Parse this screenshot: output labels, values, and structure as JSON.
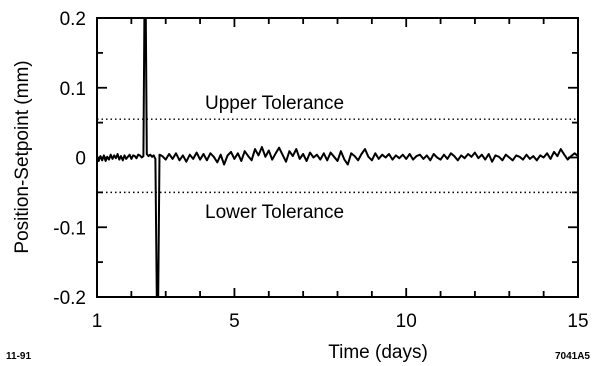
{
  "chart_data": {
    "type": "line",
    "xlabel": "Time   (days)",
    "ylabel": "Position-Setpoint   (mm)",
    "xlim": [
      1,
      15
    ],
    "ylim": [
      -0.2,
      0.2
    ],
    "x_ticks": [
      1,
      5,
      10,
      15
    ],
    "y_ticks": [
      -0.2,
      -0.1,
      0,
      0.1,
      0.2
    ],
    "y_tick_labels": [
      "-0.2",
      "-0.1",
      "0",
      "0.1",
      "0.2"
    ],
    "grid": false,
    "annotations": {
      "upper": "Upper Tolerance",
      "lower": "Lower Tolerance"
    },
    "tolerances": {
      "upper": 0.055,
      "lower": -0.05
    },
    "corner_left": "11-91",
    "corner_right": "7041A5",
    "series": [
      {
        "values": [
          [
            1.0,
            0.0
          ],
          [
            1.05,
            -0.005
          ],
          [
            1.1,
            0.002
          ],
          [
            1.15,
            -0.004
          ],
          [
            1.2,
            0.003
          ],
          [
            1.25,
            -0.005
          ],
          [
            1.3,
            0.001
          ],
          [
            1.35,
            -0.003
          ],
          [
            1.4,
            0.004
          ],
          [
            1.45,
            -0.002
          ],
          [
            1.5,
            0.003
          ],
          [
            1.55,
            -0.001
          ],
          [
            1.6,
            0.005
          ],
          [
            1.65,
            -0.003
          ],
          [
            1.7,
            0.002
          ],
          [
            1.75,
            -0.004
          ],
          [
            1.8,
            0.003
          ],
          [
            1.85,
            -0.002
          ],
          [
            1.9,
            0.001
          ],
          [
            1.95,
            0.004
          ],
          [
            2.0,
            -0.002
          ],
          [
            2.05,
            0.003
          ],
          [
            2.1,
            0.002
          ],
          [
            2.15,
            -0.001
          ],
          [
            2.2,
            0.004
          ],
          [
            2.25,
            0.003
          ],
          [
            2.3,
            0.0
          ],
          [
            2.35,
            0.002
          ],
          [
            2.38,
            0.21
          ],
          [
            2.42,
            0.21
          ],
          [
            2.45,
            0.005
          ],
          [
            2.5,
            0.002
          ],
          [
            2.55,
            0.004
          ],
          [
            2.6,
            0.001
          ],
          [
            2.65,
            0.003
          ],
          [
            2.7,
            -0.002
          ],
          [
            2.74,
            -0.21
          ],
          [
            2.78,
            -0.21
          ],
          [
            2.82,
            0.004
          ],
          [
            2.9,
            0.002
          ],
          [
            3.0,
            -0.003
          ],
          [
            3.1,
            0.005
          ],
          [
            3.2,
            -0.002
          ],
          [
            3.3,
            0.006
          ],
          [
            3.4,
            -0.004
          ],
          [
            3.5,
            0.003
          ],
          [
            3.6,
            -0.006
          ],
          [
            3.7,
            0.004
          ],
          [
            3.8,
            -0.002
          ],
          [
            3.9,
            0.007
          ],
          [
            4.0,
            -0.003
          ],
          [
            4.1,
            0.005
          ],
          [
            4.2,
            -0.004
          ],
          [
            4.3,
            0.006
          ],
          [
            4.4,
            0.001
          ],
          [
            4.5,
            -0.007
          ],
          [
            4.6,
            0.004
          ],
          [
            4.7,
            -0.01
          ],
          [
            4.8,
            0.003
          ],
          [
            4.9,
            0.008
          ],
          [
            5.0,
            -0.002
          ],
          [
            5.1,
            0.006
          ],
          [
            5.2,
            -0.005
          ],
          [
            5.3,
            0.009
          ],
          [
            5.4,
            0.002
          ],
          [
            5.5,
            -0.004
          ],
          [
            5.6,
            0.012
          ],
          [
            5.7,
            0.003
          ],
          [
            5.8,
            0.015
          ],
          [
            5.9,
            0.001
          ],
          [
            6.0,
            0.01
          ],
          [
            6.1,
            -0.003
          ],
          [
            6.2,
            0.006
          ],
          [
            6.3,
            0.014
          ],
          [
            6.4,
            0.004
          ],
          [
            6.5,
            -0.006
          ],
          [
            6.6,
            0.009
          ],
          [
            6.7,
            0.002
          ],
          [
            6.8,
            0.012
          ],
          [
            6.9,
            -0.002
          ],
          [
            7.0,
            0.005
          ],
          [
            7.1,
            -0.005
          ],
          [
            7.2,
            0.007
          ],
          [
            7.3,
            0.0
          ],
          [
            7.4,
            0.004
          ],
          [
            7.5,
            -0.003
          ],
          [
            7.6,
            0.006
          ],
          [
            7.7,
            -0.004
          ],
          [
            7.8,
            0.007
          ],
          [
            7.9,
            0.001
          ],
          [
            8.0,
            -0.005
          ],
          [
            8.1,
            0.009
          ],
          [
            8.2,
            -0.003
          ],
          [
            8.3,
            -0.01
          ],
          [
            8.4,
            0.006
          ],
          [
            8.5,
            0.002
          ],
          [
            8.6,
            -0.004
          ],
          [
            8.7,
            0.005
          ],
          [
            8.8,
            0.012
          ],
          [
            8.9,
            0.001
          ],
          [
            9.0,
            -0.004
          ],
          [
            9.1,
            0.006
          ],
          [
            9.2,
            -0.002
          ],
          [
            9.3,
            0.004
          ],
          [
            9.4,
            0.0
          ],
          [
            9.5,
            0.005
          ],
          [
            9.6,
            -0.003
          ],
          [
            9.7,
            0.003
          ],
          [
            9.8,
            -0.001
          ],
          [
            9.9,
            0.004
          ],
          [
            10.0,
            -0.002
          ],
          [
            10.1,
            0.005
          ],
          [
            10.2,
            -0.003
          ],
          [
            10.3,
            0.002
          ],
          [
            10.4,
            0.004
          ],
          [
            10.5,
            -0.002
          ],
          [
            10.6,
            0.003
          ],
          [
            10.7,
            -0.004
          ],
          [
            10.8,
            0.005
          ],
          [
            10.9,
            0.0
          ],
          [
            11.0,
            -0.003
          ],
          [
            11.1,
            0.004
          ],
          [
            11.2,
            -0.002
          ],
          [
            11.3,
            0.006
          ],
          [
            11.4,
            0.002
          ],
          [
            11.5,
            -0.004
          ],
          [
            11.6,
            0.003
          ],
          [
            11.7,
            -0.001
          ],
          [
            11.8,
            0.005
          ],
          [
            11.9,
            0.001
          ],
          [
            12.0,
            0.007
          ],
          [
            12.1,
            -0.001
          ],
          [
            12.2,
            0.004
          ],
          [
            12.3,
            -0.003
          ],
          [
            12.4,
            0.005
          ],
          [
            12.5,
            -0.006
          ],
          [
            12.6,
            0.003
          ],
          [
            12.7,
            0.001
          ],
          [
            12.8,
            -0.004
          ],
          [
            12.9,
            0.004
          ],
          [
            13.0,
            0.0
          ],
          [
            13.1,
            -0.004
          ],
          [
            13.2,
            0.003
          ],
          [
            13.3,
            0.001
          ],
          [
            13.4,
            -0.003
          ],
          [
            13.5,
            0.004
          ],
          [
            13.6,
            -0.002
          ],
          [
            13.7,
            0.002
          ],
          [
            13.8,
            -0.004
          ],
          [
            13.9,
            0.003
          ],
          [
            14.0,
            0.0
          ],
          [
            14.1,
            0.006
          ],
          [
            14.2,
            -0.002
          ],
          [
            14.3,
            0.008
          ],
          [
            14.4,
            0.002
          ],
          [
            14.5,
            0.012
          ],
          [
            14.6,
            0.004
          ],
          [
            14.7,
            -0.003
          ],
          [
            14.8,
            0.002
          ],
          [
            14.9,
            0.006
          ],
          [
            15.0,
            0.002
          ]
        ]
      }
    ]
  }
}
